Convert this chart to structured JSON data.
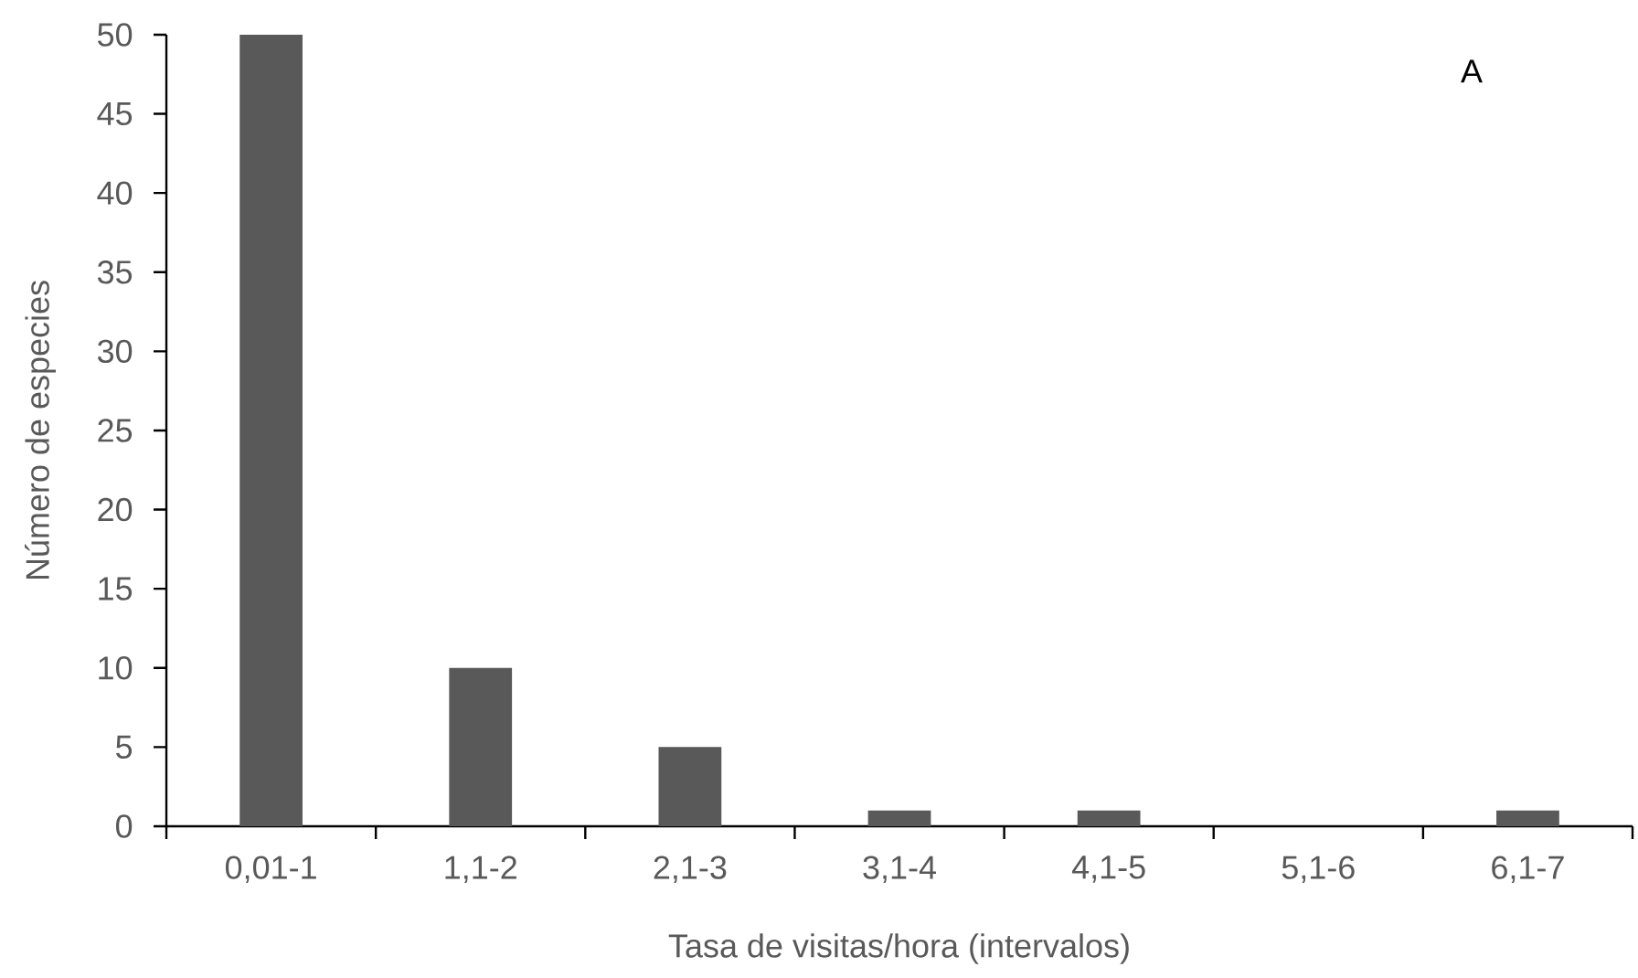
{
  "chart_data": {
    "type": "bar",
    "categories": [
      "0,01-1",
      "1,1-2",
      "2,1-3",
      "3,1-4",
      "4,1-5",
      "5,1-6",
      "6,1-7"
    ],
    "values": [
      50,
      10,
      5,
      1,
      1,
      0,
      1
    ],
    "color": "#595959",
    "xlabel": "Tasa de visitas/hora (intervalos)",
    "ylabel": "Número de especies",
    "ylim": [
      0,
      50
    ],
    "yticks": [
      0,
      5,
      10,
      15,
      20,
      25,
      30,
      35,
      40,
      45,
      50
    ],
    "annotations": [
      "A"
    ]
  }
}
